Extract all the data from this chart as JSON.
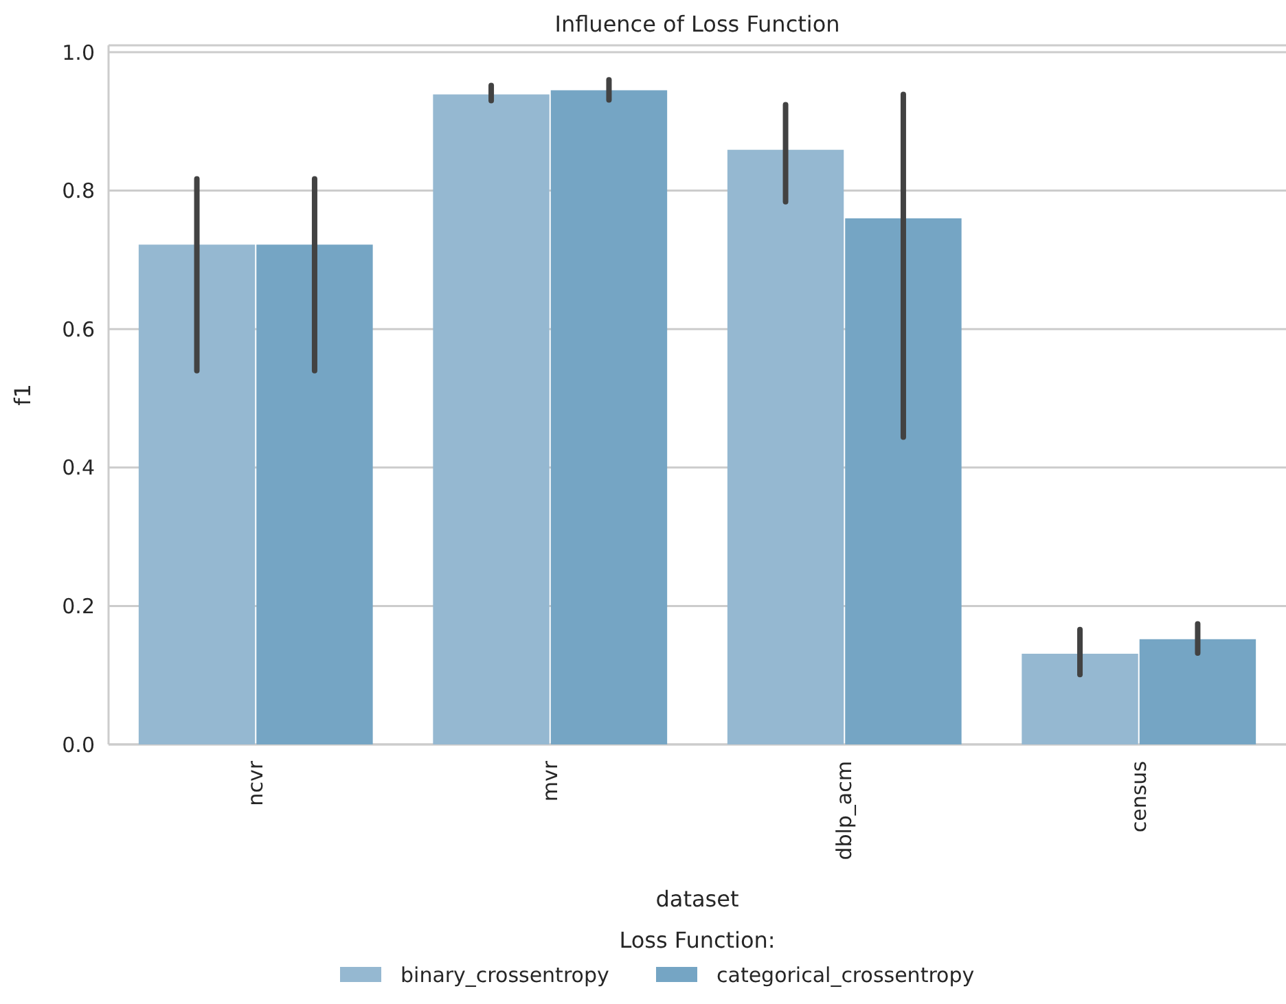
{
  "chart_data": {
    "type": "bar",
    "title": "Influence of Loss Function",
    "xlabel": "dataset",
    "ylabel": "f1",
    "legend_title": "Loss Function:",
    "categories": [
      "ncvr",
      "mvr",
      "dblp_acm",
      "census"
    ],
    "series": [
      {
        "name": "binary_crossentropy",
        "color": "#95b8d1",
        "values": [
          0.722,
          0.939,
          0.859,
          0.131
        ],
        "errors": [
          [
            0.54,
            0.817
          ],
          [
            0.93,
            0.952
          ],
          [
            0.784,
            0.924
          ],
          [
            0.101,
            0.166
          ]
        ]
      },
      {
        "name": "categorical_crossentropy",
        "color": "#75a5c4",
        "values": [
          0.722,
          0.945,
          0.76,
          0.152
        ],
        "errors": [
          [
            0.54,
            0.817
          ],
          [
            0.931,
            0.96
          ],
          [
            0.444,
            0.939
          ],
          [
            0.132,
            0.174
          ]
        ]
      }
    ],
    "ylim": [
      0,
      1.0
    ],
    "yticks": [
      {
        "value": 0,
        "label": "0.0"
      },
      {
        "value": 0.2,
        "label": "0.2"
      },
      {
        "value": 0.4,
        "label": "0.4"
      },
      {
        "value": 0.6,
        "label": "0.6"
      },
      {
        "value": 0.8,
        "label": "0.8"
      },
      {
        "value": 1,
        "label": "1.0"
      }
    ],
    "grid": "y",
    "legend": "bottom"
  }
}
